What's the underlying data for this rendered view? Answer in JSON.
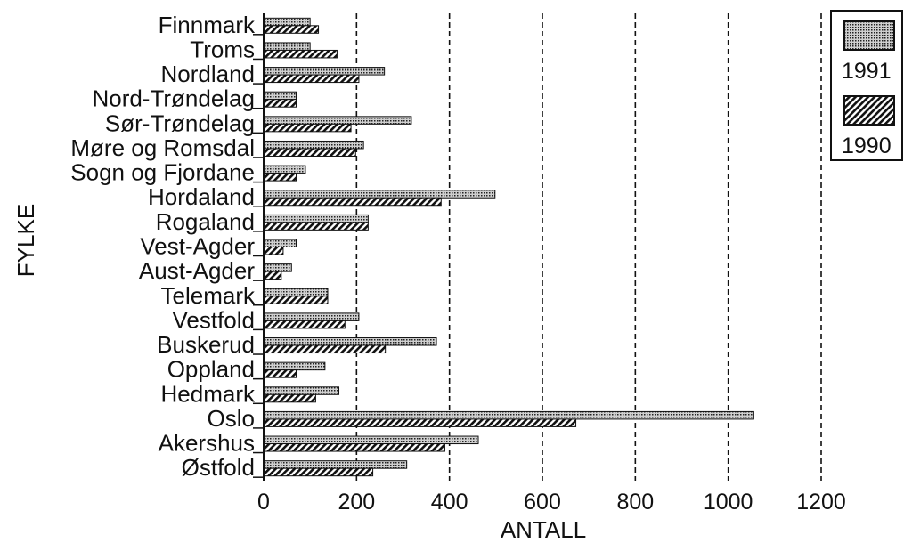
{
  "chart_data": {
    "type": "bar",
    "orientation": "horizontal",
    "xlabel": "ANTALL",
    "ylabel": "FYLKE",
    "xlim": [
      0,
      1200
    ],
    "xticks": [
      0,
      200,
      400,
      600,
      800,
      1000,
      1200
    ],
    "grid": "vertical dashed",
    "legend_position": "top-right",
    "categories": [
      "Finnmark",
      "Troms",
      "Nordland",
      "Nord-Trøndelag",
      "Sør-Trøndelag",
      "Møre og Romsdal",
      "Sogn og Fjordane",
      "Hordaland",
      "Rogaland",
      "Vest-Agder",
      "Aust-Agder",
      "Telemark",
      "Vestfold",
      "Buskerud",
      "Oppland",
      "Hedmark",
      "Oslo",
      "Akershus",
      "Østfold"
    ],
    "series": [
      {
        "name": "1991",
        "pattern": "dots",
        "values": [
          100,
          100,
          260,
          70,
          318,
          215,
          90,
          498,
          225,
          70,
          60,
          138,
          205,
          372,
          132,
          162,
          1055,
          462,
          308
        ]
      },
      {
        "name": "1990",
        "pattern": "diagonal-hatch",
        "values": [
          118,
          158,
          205,
          70,
          188,
          198,
          70,
          382,
          225,
          42,
          38,
          138,
          175,
          262,
          70,
          112,
          672,
          390,
          235
        ]
      }
    ]
  }
}
